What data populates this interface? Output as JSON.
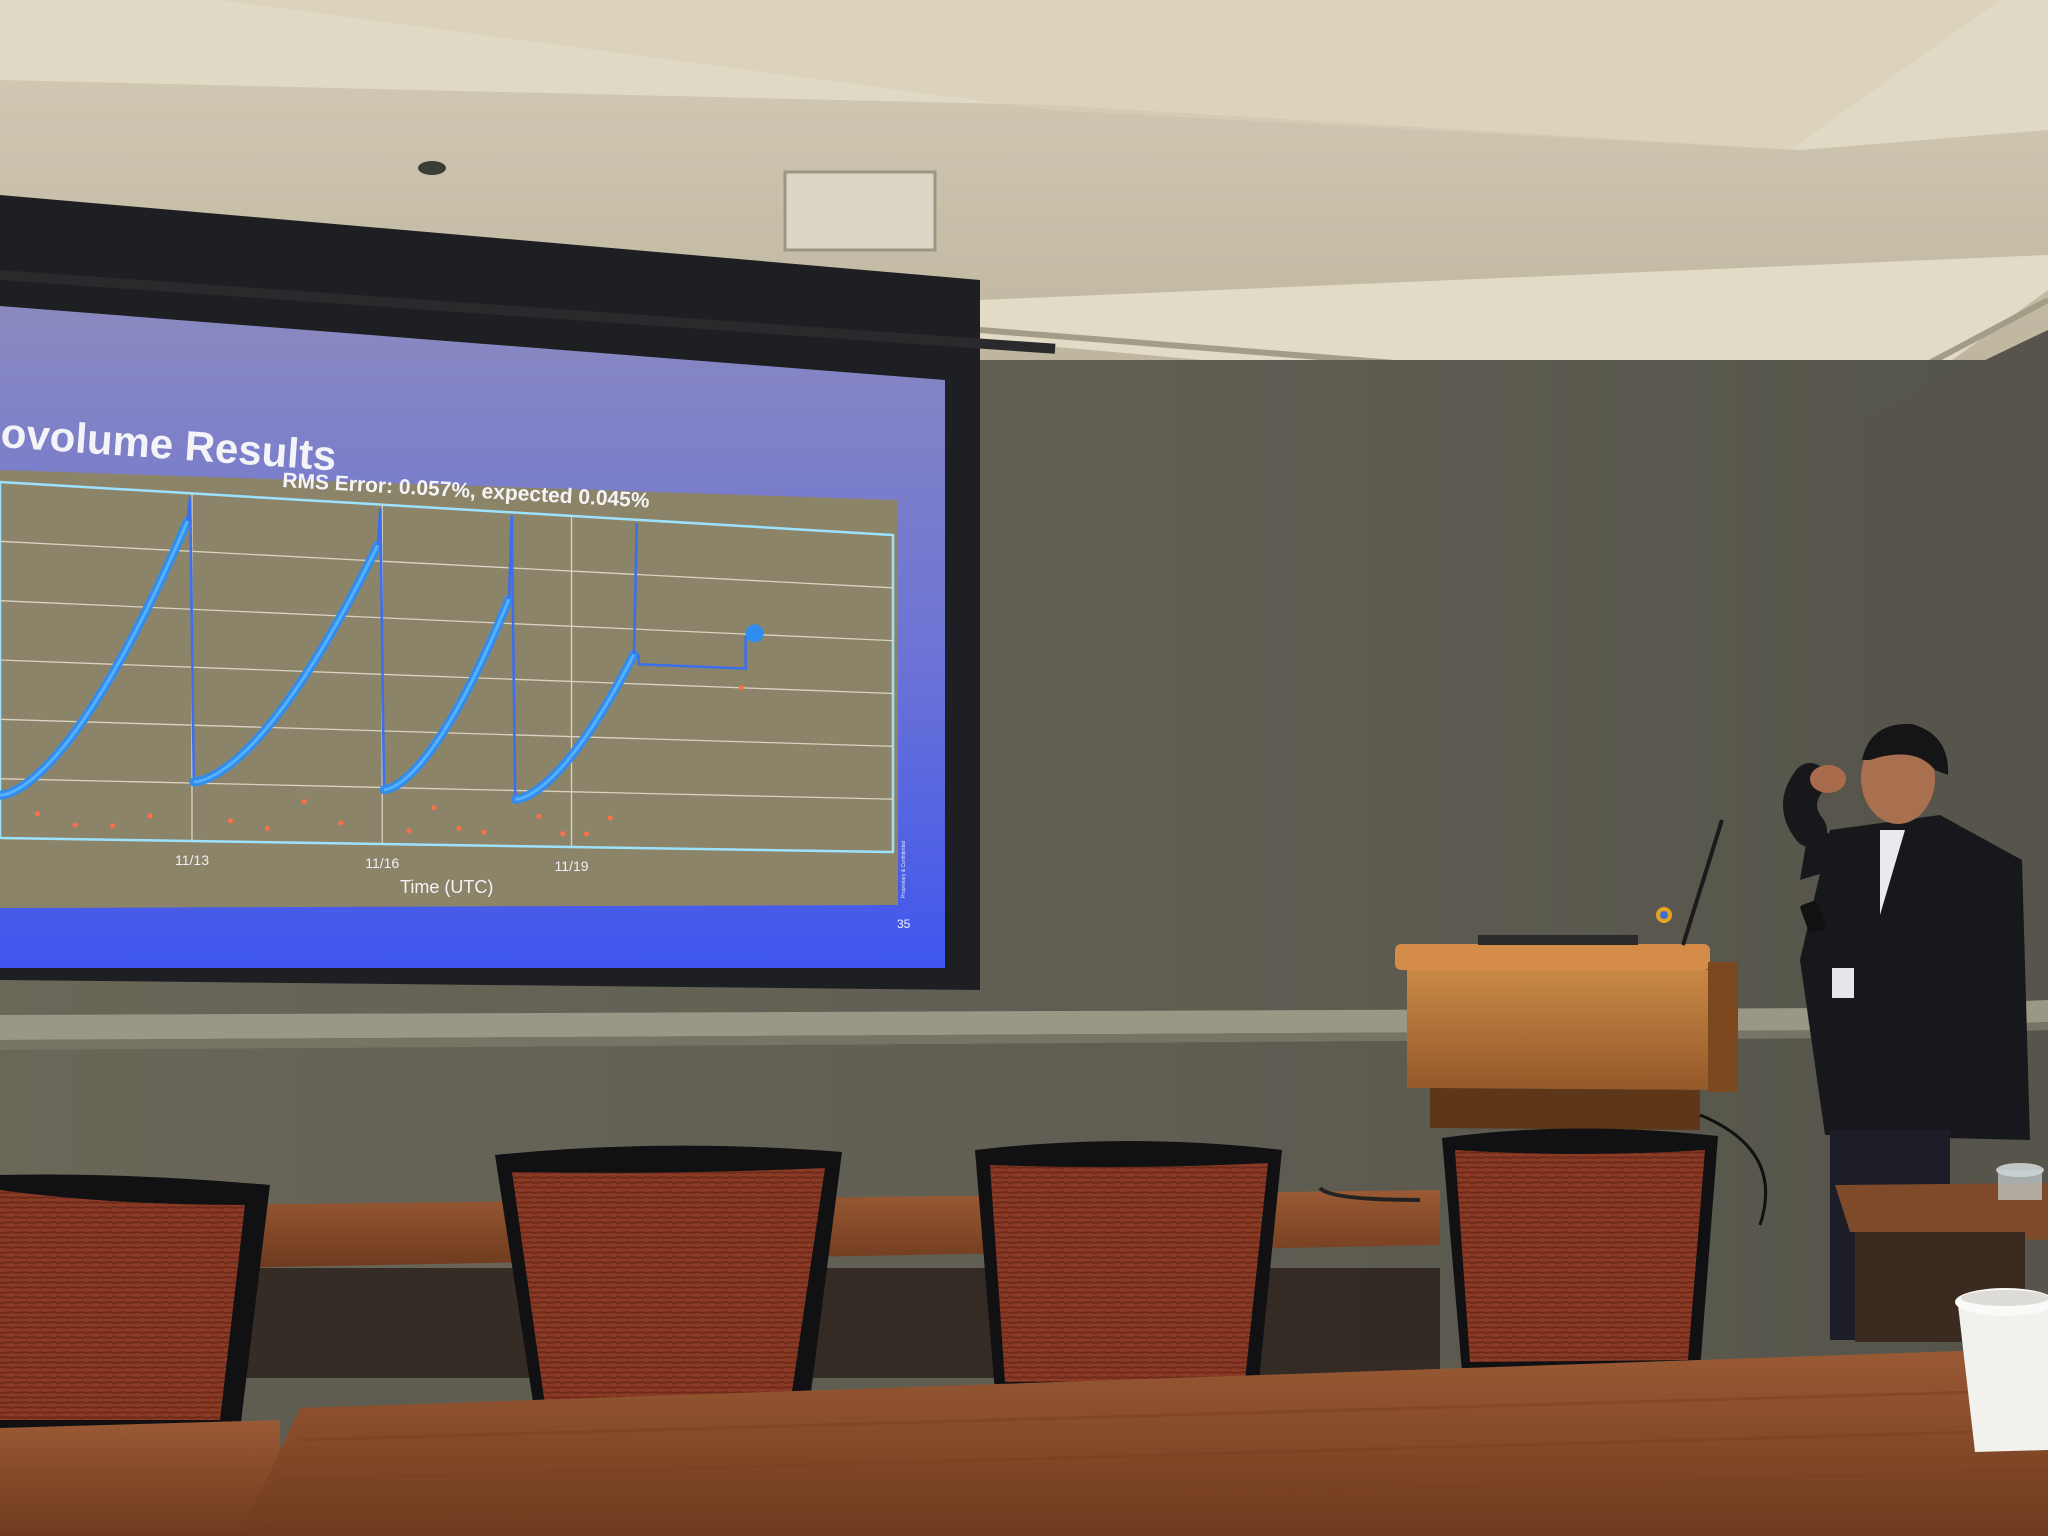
{
  "slide": {
    "title": "ovolume Results",
    "page_number": "35",
    "footer_note": "Proprietary & Confidential"
  },
  "chart_data": {
    "type": "scatter",
    "title": "RMS Error: 0.057%, expected 0.045%",
    "xlabel": "Time (UTC)",
    "ylabel": "",
    "x_ticks": [
      "11/13",
      "11/16",
      "11/19"
    ],
    "grid": true,
    "legend": "none",
    "series_colors": {
      "measured": "#2f8cf0",
      "outliers": "#ff6e4a",
      "fit_line": "#3a6ff0"
    },
    "cycles": [
      {
        "x_start": "11/10",
        "x_end": "11/13",
        "y_start": 0.12,
        "y_end": 0.92
      },
      {
        "x_start": "11/13",
        "x_end": "11/16",
        "y_start": 0.17,
        "y_end": 0.88
      },
      {
        "x_start": "11/16",
        "x_end": "11/18",
        "y_start": 0.16,
        "y_end": 0.74
      },
      {
        "x_start": "11/18",
        "x_end": "11/20",
        "y_start": 0.14,
        "y_end": 0.59
      }
    ]
  },
  "colors": {
    "wall": "#5f5d52",
    "ceiling": "#c9c2ad",
    "slide_bg_top": "#7a7cc8",
    "slide_bg_bottom": "#3f58ee",
    "plot_bg": "#8c8468",
    "table": "#8b4c2a",
    "chair_fabric": "#8a3a26",
    "podium": "#b8743a"
  }
}
